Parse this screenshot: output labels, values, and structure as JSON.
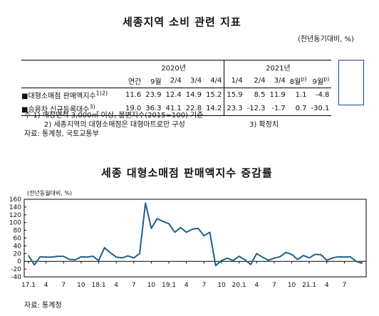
{
  "table": {
    "title": "세종지역 소비 관련 지표",
    "unit": "(전년동기대비, %)",
    "year_2020": "2020년",
    "year_2021": "2021년",
    "columns": [
      "연간",
      "9월",
      "2/4",
      "3/4",
      "4/4",
      "1/4",
      "2/4",
      "3/4",
      "8월",
      "9월"
    ],
    "col_sup": {
      "c8": "p)",
      "c9": "p)"
    },
    "rows": [
      {
        "label": "대형소매점 판매액지수",
        "sup": "1)2)",
        "values": [
          "11.6",
          "23.9",
          "12.4",
          "14.9",
          "15.2",
          "15.9",
          "8.5",
          "11.9",
          "1.1",
          "-4.8"
        ]
      },
      {
        "label": "승용차 신규등록대수",
        "sup": "3)",
        "values": [
          "19.0",
          "36.3",
          "41.1",
          "22.8",
          "14.2",
          "23.3",
          "-12.3",
          "-1.7",
          "0.7",
          "-30.1"
        ]
      }
    ],
    "notes": [
      "주  1) 매장면적 3,000㎡ 이상, 불변지수(2015=100) 기준",
      "2) 세종지역의 대형소매점은 대형마트로만 구성",
      "3) 확정치",
      "자료: 통계청, 국토교통부"
    ]
  },
  "chart_data": {
    "type": "line",
    "title": "세종 대형소매점 판매액지수 증감률",
    "ylabel": "(전년동월대비, %)",
    "source": "자료: 통계청",
    "ylim": [
      -40,
      160
    ],
    "yticks": [
      -40,
      -20,
      0,
      20,
      40,
      60,
      80,
      100,
      120,
      140,
      160
    ],
    "xtick_labels": [
      "17.1",
      "4",
      "7",
      "10",
      "18.1",
      "4",
      "7",
      "10",
      "19.1",
      "4",
      "7",
      "10",
      "20.1",
      "4",
      "7",
      "10",
      "21.1",
      "4",
      "7"
    ],
    "grid": false,
    "color": "#1f5f8b",
    "series": [
      {
        "values": [
          15,
          -9,
          12,
          11,
          11,
          13,
          13,
          5,
          4,
          12,
          11,
          13,
          2,
          35,
          22,
          11,
          9,
          14,
          9,
          20,
          150,
          85,
          110,
          103,
          97,
          75,
          87,
          75,
          83,
          85,
          66,
          75,
          -11,
          2,
          8,
          2,
          13,
          4,
          -8,
          20,
          11,
          3,
          8,
          12,
          23,
          18,
          5,
          15,
          9,
          18,
          17,
          3,
          9,
          12,
          11,
          12,
          0,
          -5
        ]
      }
    ]
  }
}
